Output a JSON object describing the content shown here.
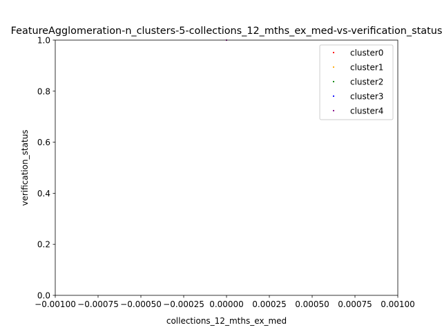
{
  "chart_data": {
    "type": "scatter",
    "title": "FeatureAgglomeration-n_clusters-5-collections_12_mths_ex_med-vs-verification_status",
    "xlabel": "collections_12_mths_ex_med",
    "ylabel": "verification_status",
    "xlim": [
      -0.001,
      0.001
    ],
    "ylim": [
      0.0,
      1.0
    ],
    "x_ticks": [
      -0.001,
      -0.00075,
      -0.0005,
      -0.00025,
      0.0,
      0.00025,
      0.0005,
      0.00075,
      0.001
    ],
    "x_tick_labels": [
      "−0.00100",
      "−0.00075",
      "−0.00050",
      "−0.00025",
      "0.00000",
      "0.00025",
      "0.00050",
      "0.00075",
      "0.00100"
    ],
    "y_ticks": [
      0.0,
      0.2,
      0.4,
      0.6,
      0.8,
      1.0
    ],
    "y_tick_labels": [
      "0.0",
      "0.2",
      "0.4",
      "0.6",
      "0.8",
      "1.0"
    ],
    "grid": false,
    "legend_position": "upper-right",
    "series": [
      {
        "name": "cluster0",
        "color": "#ff0000",
        "points": []
      },
      {
        "name": "cluster1",
        "color": "#ffa500",
        "points": []
      },
      {
        "name": "cluster2",
        "color": "#008000",
        "points": []
      },
      {
        "name": "cluster3",
        "color": "#0000ff",
        "points": []
      },
      {
        "name": "cluster4",
        "color": "#800080",
        "points": [
          [
            0.0,
            1.0
          ]
        ]
      }
    ]
  }
}
